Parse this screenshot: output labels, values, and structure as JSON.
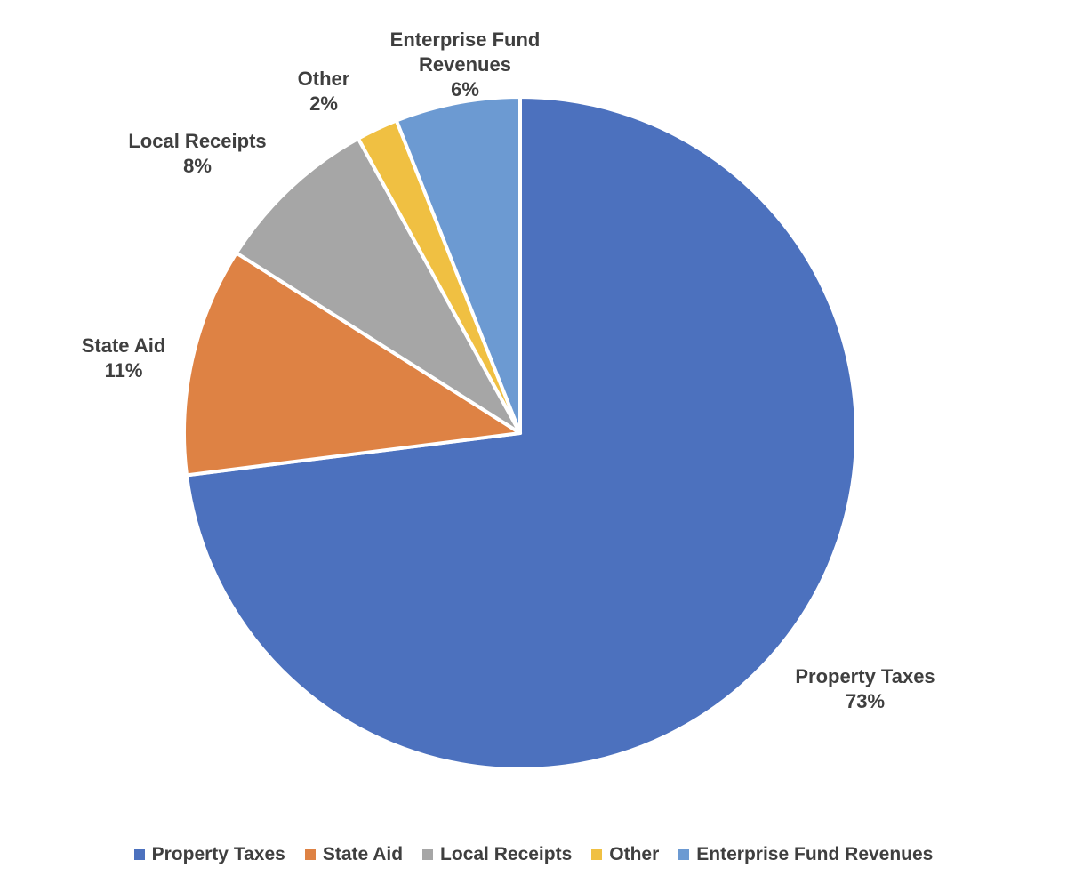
{
  "chart_data": {
    "type": "pie",
    "title": "",
    "slices": [
      {
        "label": "Property Taxes",
        "value": 73,
        "pct_label": "73%",
        "color": "#4C71BE"
      },
      {
        "label": "State Aid",
        "value": 11,
        "pct_label": "11%",
        "color": "#DE8244"
      },
      {
        "label": "Local Receipts",
        "value": 8,
        "pct_label": "8%",
        "color": "#A6A6A6"
      },
      {
        "label": "Other",
        "value": 2,
        "pct_label": "2%",
        "color": "#F0C042"
      },
      {
        "label": "Enterprise Fund Revenues",
        "value": 6,
        "pct_label": "6%",
        "color": "#6C9AD2"
      }
    ],
    "start_angle_deg": 0,
    "direction": "clockwise",
    "slice_border_color": "#ffffff",
    "data_labels": "category name and percentage, outside slices",
    "legend_position": "bottom",
    "text_color": "#3F3F3F",
    "background_color": "#FFFFFF"
  },
  "legend": {
    "items": [
      {
        "label": "Property Taxes"
      },
      {
        "label": "State Aid"
      },
      {
        "label": "Local Receipts"
      },
      {
        "label": "Other"
      },
      {
        "label": "Enterprise Fund Revenues"
      }
    ]
  }
}
